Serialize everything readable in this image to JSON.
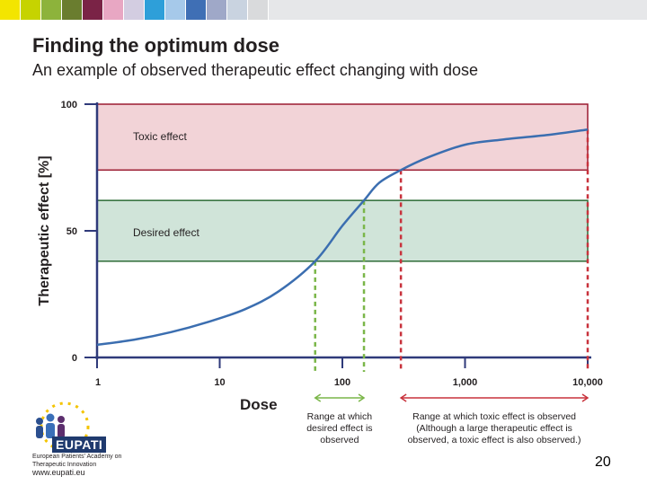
{
  "slide": {
    "title": "Finding the optimum dose",
    "subtitle": "An example of observed therapeutic effect changing with dose",
    "page_number": "20"
  },
  "topbar_colors": [
    "#f3e500",
    "#c6d300",
    "#8db33b",
    "#6a7d2f",
    "#7a2346",
    "#e8a7c3",
    "#d3cde1",
    "#2e9fd9",
    "#a6c9ea",
    "#3f6fb5",
    "#9fa8c8",
    "#c9d3e0",
    "#d9dadc"
  ],
  "chart_data": {
    "type": "line",
    "title": "",
    "xlabel": "Dose",
    "ylabel": "Therapeutic effect [%]",
    "xscale": "log",
    "xlim": [
      1,
      10000
    ],
    "ylim": [
      0,
      100
    ],
    "x_ticks": [
      1,
      10,
      100,
      1000,
      10000
    ],
    "x_tick_labels": [
      "1",
      "10",
      "100",
      "1,000",
      "10,000"
    ],
    "y_ticks": [
      0,
      50,
      100
    ],
    "y_tick_labels": [
      "0",
      "50",
      "100"
    ],
    "series": [
      {
        "name": "Observed therapeutic effect",
        "color": "#3b6eb0",
        "x": [
          1,
          2,
          4,
          8,
          16,
          30,
          60,
          100,
          150,
          200,
          300,
          500,
          1000,
          2000,
          5000,
          10000
        ],
        "y": [
          5,
          7,
          10,
          14,
          19,
          26,
          38,
          52,
          62,
          69,
          74,
          79,
          84,
          86,
          88,
          90
        ]
      }
    ],
    "bands": [
      {
        "label": "Toxic effect",
        "y_from": 74,
        "y_to": 100,
        "fill": "#f2d3d7",
        "stroke": "#9b1b30"
      },
      {
        "label": "Desired effect",
        "y_from": 38,
        "y_to": 62,
        "fill": "#d0e4d9",
        "stroke": "#2e6b37"
      }
    ],
    "markers": [
      {
        "x": 60,
        "color": "#7ab648"
      },
      {
        "x": 150,
        "color": "#7ab648"
      },
      {
        "x": 300,
        "color": "#c8323c"
      },
      {
        "x": 10000,
        "color": "#c8323c"
      }
    ],
    "ranges": [
      {
        "x_from": 60,
        "x_to": 150,
        "color": "#7ab648",
        "label_lines": [
          "Range at which",
          "desired effect is",
          "observed"
        ]
      },
      {
        "x_from": 300,
        "x_to": 10000,
        "color": "#c8323c",
        "label_lines": [
          "Range at which toxic effect is observed",
          "(Although a large therapeutic effect is",
          "observed, a toxic effect is also observed.)"
        ]
      }
    ]
  },
  "logo": {
    "name": "EUPATI",
    "org": "European Patients' Academy on Therapeutic Innovation",
    "url": "www.eupati.eu"
  }
}
